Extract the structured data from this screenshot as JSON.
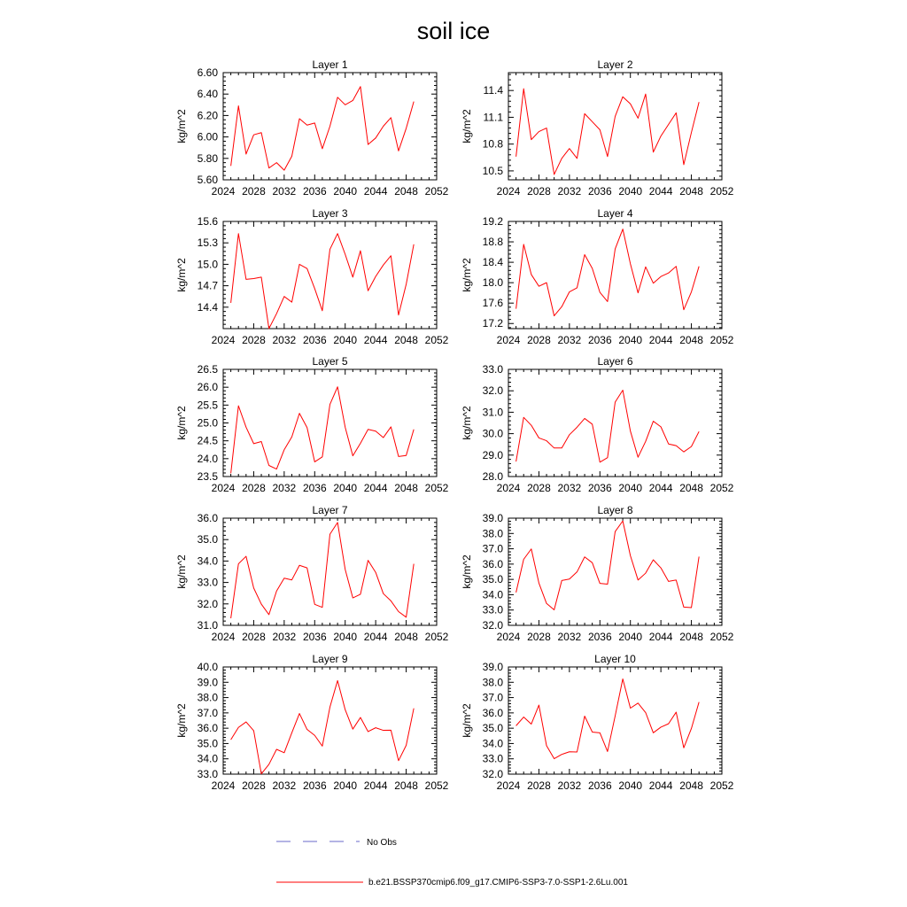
{
  "figure": {
    "title": "soil ice",
    "colors": {
      "model_line": "#ff0000",
      "obs_line": "#6a6ac8",
      "axis": "#000000"
    },
    "legend": {
      "obs_label": "No Obs",
      "model_label": "b.e21.BSSP370cmip6.f09_g17.CMIP6-SSP3-7.0-SSP1-2.6Lu.001"
    }
  },
  "chart_data": [
    {
      "type": "line",
      "title": "Layer 1",
      "ylabel": "kg/m^2",
      "xlim": [
        2024,
        2052
      ],
      "ylim": [
        5.6,
        6.6
      ],
      "xticks": [
        2024,
        2028,
        2032,
        2036,
        2040,
        2044,
        2048,
        2052
      ],
      "xtick_labels": [
        "2024",
        "2028",
        "2032",
        "2036",
        "2040",
        "2044",
        "2048",
        "2052"
      ],
      "yticks": [
        5.6,
        5.8,
        6.0,
        6.2,
        6.4,
        6.6
      ],
      "ytick_labels": [
        "5.60",
        "5.80",
        "6.00",
        "6.20",
        "6.40",
        "6.60"
      ],
      "x": [
        2025,
        2026,
        2027,
        2028,
        2029,
        2030,
        2031,
        2032,
        2033,
        2034,
        2035,
        2036,
        2037,
        2038,
        2039,
        2040,
        2041,
        2042,
        2043,
        2044,
        2045,
        2046,
        2047,
        2048,
        2049
      ],
      "series": [
        {
          "values": [
            5.73,
            6.29,
            5.84,
            6.02,
            6.04,
            5.71,
            5.76,
            5.69,
            5.82,
            6.17,
            6.11,
            6.13,
            5.89,
            6.1,
            6.37,
            6.3,
            6.34,
            6.47,
            5.93,
            5.99,
            6.1,
            6.18,
            5.87,
            6.08,
            6.33
          ]
        }
      ]
    },
    {
      "type": "line",
      "title": "Layer 2",
      "ylabel": "kg/m^2",
      "xlim": [
        2024,
        2052
      ],
      "ylim": [
        10.4,
        11.6
      ],
      "xticks": [
        2024,
        2028,
        2032,
        2036,
        2040,
        2044,
        2048,
        2052
      ],
      "xtick_labels": [
        "2024",
        "2028",
        "2032",
        "2036",
        "2040",
        "2044",
        "2048",
        "2052"
      ],
      "yticks": [
        10.5,
        10.8,
        11.1,
        11.4
      ],
      "ytick_labels": [
        "10.5",
        "10.8",
        "11.1",
        "11.4"
      ],
      "x": [
        2025,
        2026,
        2027,
        2028,
        2029,
        2030,
        2031,
        2032,
        2033,
        2034,
        2035,
        2036,
        2037,
        2038,
        2039,
        2040,
        2041,
        2042,
        2043,
        2044,
        2045,
        2046,
        2047,
        2048,
        2049
      ],
      "series": [
        {
          "values": [
            10.66,
            11.42,
            10.85,
            10.94,
            10.98,
            10.46,
            10.64,
            10.75,
            10.64,
            11.14,
            11.05,
            10.96,
            10.66,
            11.11,
            11.33,
            11.25,
            11.09,
            11.36,
            10.71,
            10.89,
            11.02,
            11.15,
            10.57,
            10.93,
            11.27
          ]
        }
      ]
    },
    {
      "type": "line",
      "title": "Layer 3",
      "ylabel": "kg/m^2",
      "xlim": [
        2024,
        2052
      ],
      "ylim": [
        14.1,
        15.6
      ],
      "xticks": [
        2024,
        2028,
        2032,
        2036,
        2040,
        2044,
        2048,
        2052
      ],
      "xtick_labels": [
        "2024",
        "2028",
        "2032",
        "2036",
        "2040",
        "2044",
        "2048",
        "2052"
      ],
      "yticks": [
        14.4,
        14.7,
        15.0,
        15.3,
        15.6
      ],
      "ytick_labels": [
        "14.4",
        "14.7",
        "15.0",
        "15.3",
        "15.6"
      ],
      "x": [
        2025,
        2026,
        2027,
        2028,
        2029,
        2030,
        2031,
        2032,
        2033,
        2034,
        2035,
        2036,
        2037,
        2038,
        2039,
        2040,
        2041,
        2042,
        2043,
        2044,
        2045,
        2046,
        2047,
        2048,
        2049
      ],
      "series": [
        {
          "values": [
            14.46,
            15.43,
            14.79,
            14.8,
            14.82,
            14.1,
            14.31,
            14.55,
            14.47,
            15.0,
            14.94,
            14.66,
            14.35,
            15.21,
            15.43,
            15.14,
            14.82,
            15.19,
            14.63,
            14.83,
            14.99,
            15.12,
            14.29,
            14.72,
            15.28
          ]
        }
      ]
    },
    {
      "type": "line",
      "title": "Layer 4",
      "ylabel": "kg/m^2",
      "xlim": [
        2024,
        2052
      ],
      "ylim": [
        17.1,
        19.2
      ],
      "xticks": [
        2024,
        2028,
        2032,
        2036,
        2040,
        2044,
        2048,
        2052
      ],
      "xtick_labels": [
        "2024",
        "2028",
        "2032",
        "2036",
        "2040",
        "2044",
        "2048",
        "2052"
      ],
      "yticks": [
        17.2,
        17.6,
        18.0,
        18.4,
        18.8,
        19.2
      ],
      "ytick_labels": [
        "17.2",
        "17.6",
        "18.0",
        "18.4",
        "18.8",
        "19.2"
      ],
      "x": [
        2025,
        2026,
        2027,
        2028,
        2029,
        2030,
        2031,
        2032,
        2033,
        2034,
        2035,
        2036,
        2037,
        2038,
        2039,
        2040,
        2041,
        2042,
        2043,
        2044,
        2045,
        2046,
        2047,
        2048,
        2049
      ],
      "series": [
        {
          "values": [
            17.49,
            18.75,
            18.16,
            17.93,
            18.0,
            17.35,
            17.53,
            17.82,
            17.9,
            18.55,
            18.28,
            17.81,
            17.63,
            18.66,
            19.05,
            18.37,
            17.8,
            18.31,
            17.99,
            18.12,
            18.19,
            18.32,
            17.47,
            17.82,
            18.32
          ]
        }
      ]
    },
    {
      "type": "line",
      "title": "Layer 5",
      "ylabel": "kg/m^2",
      "xlim": [
        2024,
        2052
      ],
      "ylim": [
        23.5,
        26.5
      ],
      "xticks": [
        2024,
        2028,
        2032,
        2036,
        2040,
        2044,
        2048,
        2052
      ],
      "xtick_labels": [
        "2024",
        "2028",
        "2032",
        "2036",
        "2040",
        "2044",
        "2048",
        "2052"
      ],
      "yticks": [
        23.5,
        24.0,
        24.5,
        25.0,
        25.5,
        26.0,
        26.5
      ],
      "ytick_labels": [
        "23.5",
        "24.0",
        "24.5",
        "25.0",
        "25.5",
        "26.0",
        "26.5"
      ],
      "x": [
        2025,
        2026,
        2027,
        2028,
        2029,
        2030,
        2031,
        2032,
        2033,
        2034,
        2035,
        2036,
        2037,
        2038,
        2039,
        2040,
        2041,
        2042,
        2043,
        2044,
        2045,
        2046,
        2047,
        2048,
        2049
      ],
      "series": [
        {
          "values": [
            23.59,
            25.48,
            24.88,
            24.42,
            24.48,
            23.81,
            23.71,
            24.25,
            24.61,
            25.27,
            24.87,
            23.91,
            24.05,
            25.52,
            26.01,
            24.88,
            24.08,
            24.43,
            24.82,
            24.77,
            24.59,
            24.89,
            24.06,
            24.09,
            24.82
          ]
        }
      ]
    },
    {
      "type": "line",
      "title": "Layer 6",
      "ylabel": "kg/m^2",
      "xlim": [
        2024,
        2052
      ],
      "ylim": [
        28.0,
        33.0
      ],
      "xticks": [
        2024,
        2028,
        2032,
        2036,
        2040,
        2044,
        2048,
        2052
      ],
      "xtick_labels": [
        "2024",
        "2028",
        "2032",
        "2036",
        "2040",
        "2044",
        "2048",
        "2052"
      ],
      "yticks": [
        28.0,
        29.0,
        30.0,
        31.0,
        32.0,
        33.0
      ],
      "ytick_labels": [
        "28.0",
        "29.0",
        "30.0",
        "31.0",
        "32.0",
        "33.0"
      ],
      "x": [
        2025,
        2026,
        2027,
        2028,
        2029,
        2030,
        2031,
        2032,
        2033,
        2034,
        2035,
        2036,
        2037,
        2038,
        2039,
        2040,
        2041,
        2042,
        2043,
        2044,
        2045,
        2046,
        2047,
        2048,
        2049
      ],
      "series": [
        {
          "values": [
            28.7,
            30.76,
            30.39,
            29.8,
            29.67,
            29.33,
            29.33,
            29.95,
            30.3,
            30.71,
            30.44,
            28.67,
            28.88,
            31.47,
            32.03,
            30.12,
            28.9,
            29.64,
            30.58,
            30.32,
            29.52,
            29.44,
            29.15,
            29.4,
            30.1
          ]
        }
      ]
    },
    {
      "type": "line",
      "title": "Layer 7",
      "ylabel": "kg/m^2",
      "xlim": [
        2024,
        2052
      ],
      "ylim": [
        31.0,
        36.0
      ],
      "xticks": [
        2024,
        2028,
        2032,
        2036,
        2040,
        2044,
        2048,
        2052
      ],
      "xtick_labels": [
        "2024",
        "2028",
        "2032",
        "2036",
        "2040",
        "2044",
        "2048",
        "2052"
      ],
      "yticks": [
        31.0,
        32.0,
        33.0,
        34.0,
        35.0,
        36.0
      ],
      "ytick_labels": [
        "31.0",
        "32.0",
        "33.0",
        "34.0",
        "35.0",
        "36.0"
      ],
      "x": [
        2025,
        2026,
        2027,
        2028,
        2029,
        2030,
        2031,
        2032,
        2033,
        2034,
        2035,
        2036,
        2037,
        2038,
        2039,
        2040,
        2041,
        2042,
        2043,
        2044,
        2045,
        2046,
        2047,
        2048,
        2049
      ],
      "series": [
        {
          "values": [
            31.33,
            33.87,
            34.22,
            32.74,
            31.99,
            31.5,
            32.6,
            33.2,
            33.12,
            33.8,
            33.68,
            31.98,
            31.84,
            35.25,
            35.8,
            33.61,
            32.28,
            32.45,
            34.03,
            33.47,
            32.48,
            32.14,
            31.64,
            31.38,
            33.87
          ]
        }
      ]
    },
    {
      "type": "line",
      "title": "Layer 8",
      "ylabel": "kg/m^2",
      "xlim": [
        2024,
        2052
      ],
      "ylim": [
        32.0,
        39.0
      ],
      "xticks": [
        2024,
        2028,
        2032,
        2036,
        2040,
        2044,
        2048,
        2052
      ],
      "xtick_labels": [
        "2024",
        "2028",
        "2032",
        "2036",
        "2040",
        "2044",
        "2048",
        "2052"
      ],
      "yticks": [
        32.0,
        33.0,
        34.0,
        35.0,
        36.0,
        37.0,
        38.0,
        39.0
      ],
      "ytick_labels": [
        "32.0",
        "33.0",
        "34.0",
        "35.0",
        "36.0",
        "37.0",
        "38.0",
        "39.0"
      ],
      "x": [
        2025,
        2026,
        2027,
        2028,
        2029,
        2030,
        2031,
        2032,
        2033,
        2034,
        2035,
        2036,
        2037,
        2038,
        2039,
        2040,
        2041,
        2042,
        2043,
        2044,
        2045,
        2046,
        2047,
        2048,
        2049
      ],
      "series": [
        {
          "values": [
            34.15,
            36.31,
            36.99,
            34.76,
            33.43,
            33.01,
            34.93,
            35.02,
            35.49,
            36.47,
            36.09,
            34.74,
            34.69,
            38.12,
            38.82,
            36.55,
            34.96,
            35.41,
            36.28,
            35.75,
            34.87,
            34.96,
            33.19,
            33.16,
            36.49
          ]
        }
      ]
    },
    {
      "type": "line",
      "title": "Layer 9",
      "ylabel": "kg/m^2",
      "xlim": [
        2024,
        2052
      ],
      "ylim": [
        33.0,
        40.0
      ],
      "xticks": [
        2024,
        2028,
        2032,
        2036,
        2040,
        2044,
        2048,
        2052
      ],
      "xtick_labels": [
        "2024",
        "2028",
        "2032",
        "2036",
        "2040",
        "2044",
        "2048",
        "2052"
      ],
      "yticks": [
        33.0,
        34.0,
        35.0,
        36.0,
        37.0,
        38.0,
        39.0,
        40.0
      ],
      "ytick_labels": [
        "33.0",
        "34.0",
        "35.0",
        "36.0",
        "37.0",
        "38.0",
        "39.0",
        "40.0"
      ],
      "x": [
        2025,
        2026,
        2027,
        2028,
        2029,
        2030,
        2031,
        2032,
        2033,
        2034,
        2035,
        2036,
        2037,
        2038,
        2039,
        2040,
        2041,
        2042,
        2043,
        2044,
        2045,
        2046,
        2047,
        2048,
        2049
      ],
      "series": [
        {
          "values": [
            35.25,
            36.05,
            36.41,
            35.84,
            33.02,
            33.64,
            34.62,
            34.4,
            35.7,
            36.96,
            35.92,
            35.53,
            34.83,
            37.38,
            39.11,
            37.21,
            35.94,
            36.7,
            35.78,
            36.03,
            35.86,
            35.87,
            33.88,
            34.88,
            37.3
          ]
        }
      ]
    },
    {
      "type": "line",
      "title": "Layer 10",
      "ylabel": "kg/m^2",
      "xlim": [
        2024,
        2052
      ],
      "ylim": [
        32.0,
        39.0
      ],
      "xticks": [
        2024,
        2028,
        2032,
        2036,
        2040,
        2044,
        2048,
        2052
      ],
      "xtick_labels": [
        "2024",
        "2028",
        "2032",
        "2036",
        "2040",
        "2044",
        "2048",
        "2052"
      ],
      "yticks": [
        32.0,
        33.0,
        34.0,
        35.0,
        36.0,
        37.0,
        38.0,
        39.0
      ],
      "ytick_labels": [
        "32.0",
        "33.0",
        "34.0",
        "35.0",
        "36.0",
        "37.0",
        "38.0",
        "39.0"
      ],
      "x": [
        2025,
        2026,
        2027,
        2028,
        2029,
        2030,
        2031,
        2032,
        2033,
        2034,
        2035,
        2036,
        2037,
        2038,
        2039,
        2040,
        2041,
        2042,
        2043,
        2044,
        2045,
        2046,
        2047,
        2048,
        2049
      ],
      "series": [
        {
          "values": [
            35.16,
            35.73,
            35.27,
            36.51,
            33.86,
            33.01,
            33.29,
            33.46,
            33.45,
            35.79,
            34.75,
            34.7,
            33.48,
            35.8,
            38.22,
            36.31,
            36.64,
            36.02,
            34.7,
            35.07,
            35.29,
            36.05,
            33.72,
            34.98,
            36.71
          ]
        }
      ]
    }
  ]
}
